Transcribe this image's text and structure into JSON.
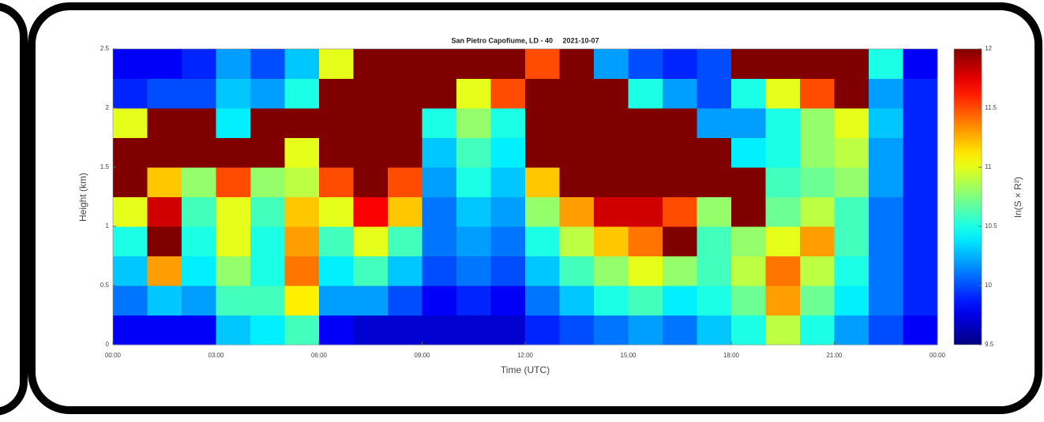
{
  "chart_data": {
    "type": "heatmap",
    "title": "San Pietro Capofiume, LD - 40     2021-10-07",
    "xlabel": "Time (UTC)",
    "ylabel": "Height (km)",
    "clabel": "ln(S × R²)",
    "colormap": "jet",
    "xbins": [
      0,
      1,
      2,
      3,
      4,
      5,
      6,
      7,
      8,
      9,
      10,
      11,
      12,
      13,
      14,
      15,
      16,
      17,
      18,
      19,
      20,
      21,
      22,
      23,
      24
    ],
    "ybins": [
      0,
      0.25,
      0.5,
      0.75,
      1,
      1.25,
      1.5,
      1.75,
      2,
      2.25,
      2.5
    ],
    "xlim": [
      0,
      24
    ],
    "xticks": [
      {
        "value": 0,
        "label": "00:00"
      },
      {
        "value": 3,
        "label": "03:00"
      },
      {
        "value": 6,
        "label": "06:00"
      },
      {
        "value": 9,
        "label": "09:00"
      },
      {
        "value": 12,
        "label": "12:00"
      },
      {
        "value": 15,
        "label": "15:00"
      },
      {
        "value": 18,
        "label": "18:00"
      },
      {
        "value": 21,
        "label": "21:00"
      },
      {
        "value": 24,
        "label": "00:00"
      }
    ],
    "ylim": [
      0,
      2.5
    ],
    "yticks": [
      0,
      0.5,
      1,
      1.5,
      2,
      2.5
    ],
    "clim": [
      9.5,
      12
    ],
    "cticks": [
      9.5,
      10,
      10.5,
      11,
      11.5,
      12
    ],
    "z": [
      [
        9.8,
        9.8,
        9.8,
        10.3,
        10.4,
        10.6,
        9.8,
        9.7,
        9.7,
        9.7,
        9.7,
        9.7,
        9.9,
        10.0,
        10.1,
        10.2,
        10.1,
        10.3,
        10.5,
        10.9,
        10.5,
        10.2,
        10.0,
        9.8
      ],
      [
        10.1,
        10.3,
        10.2,
        10.6,
        10.6,
        11.1,
        10.2,
        10.2,
        10.0,
        9.8,
        9.9,
        9.8,
        10.1,
        10.3,
        10.5,
        10.6,
        10.4,
        10.5,
        10.7,
        11.3,
        10.7,
        10.4,
        10.1,
        9.9
      ],
      [
        10.3,
        11.3,
        10.4,
        10.8,
        10.5,
        11.4,
        10.4,
        10.6,
        10.3,
        10.0,
        10.1,
        10.0,
        10.3,
        10.6,
        10.8,
        11.0,
        10.8,
        10.6,
        10.9,
        11.4,
        10.9,
        10.5,
        10.1,
        9.9
      ],
      [
        10.5,
        12,
        10.5,
        11,
        10.5,
        11.3,
        10.6,
        11,
        10.6,
        10.1,
        10.2,
        10.1,
        10.5,
        10.9,
        11.2,
        11.4,
        12,
        10.6,
        10.8,
        11.0,
        11.3,
        10.6,
        10.1,
        9.9
      ],
      [
        11,
        11.8,
        10.6,
        11,
        10.6,
        11.2,
        11,
        11.7,
        11.2,
        10.1,
        10.3,
        10.2,
        10.8,
        11.3,
        11.8,
        11.8,
        11.5,
        10.8,
        12,
        10.7,
        10.9,
        10.6,
        10.1,
        9.9
      ],
      [
        12,
        11.2,
        10.8,
        11.5,
        10.8,
        10.9,
        11.5,
        12,
        11.5,
        10.2,
        10.5,
        10.3,
        11.2,
        12,
        12,
        12,
        12,
        12,
        12,
        10.6,
        10.7,
        10.8,
        10.2,
        9.9
      ],
      [
        12,
        12,
        12,
        12,
        12,
        11,
        12,
        12,
        12,
        10.3,
        10.6,
        10.4,
        12,
        12,
        12,
        12,
        12,
        12,
        10.4,
        10.5,
        10.8,
        10.9,
        10.2,
        9.9
      ],
      [
        11,
        12,
        12,
        10.4,
        12,
        12,
        12,
        12,
        12,
        10.5,
        10.8,
        10.5,
        12,
        12,
        12,
        12,
        12,
        10.2,
        10.2,
        10.5,
        10.8,
        11.0,
        10.3,
        9.9
      ],
      [
        9.9,
        10.0,
        10.0,
        10.3,
        10.2,
        10.5,
        12,
        12,
        12,
        12,
        11,
        11.5,
        12,
        12,
        12,
        10.5,
        10.2,
        10.0,
        10.5,
        11.0,
        11.5,
        12,
        10.2,
        9.9
      ],
      [
        9.8,
        9.8,
        9.9,
        10.2,
        10.0,
        10.3,
        11.0,
        12,
        12,
        12,
        12,
        12,
        11.5,
        12,
        10.2,
        10.0,
        9.9,
        10.0,
        12,
        12,
        12,
        12,
        10.5,
        9.8
      ]
    ]
  }
}
